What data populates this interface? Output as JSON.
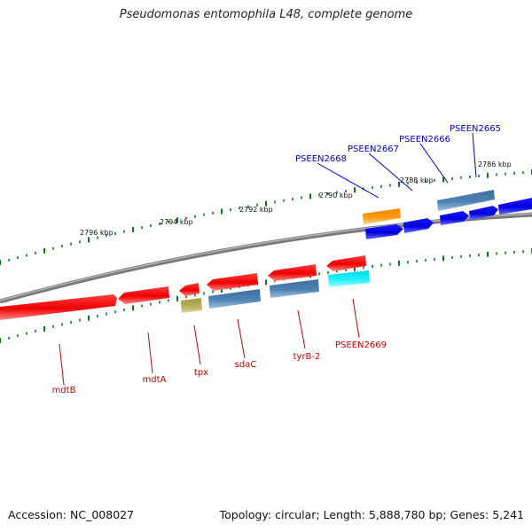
{
  "title": "Pseudomonas entomophila L48, complete genome",
  "footer": {
    "accession": "Accession: NC_008027",
    "topology": "Topology: circular; Length: 5,888,780 bp; Genes: 5,241"
  },
  "colors": {
    "background": "#ffffff",
    "backbone": "#888888",
    "tick": "#0b7a1b",
    "forward_label": "#0000cc",
    "reverse_label": "#cc0000",
    "red_gene": "#ff0000",
    "steelblue_gene": "#4a7fae",
    "blue_gene": "#0000ee",
    "orange_gene": "#ff9900",
    "olive_gene": "#b5a955",
    "cyan_gene": "#00e5ee"
  },
  "kbp_labels": [
    "2786 kbp",
    "2788 kbp",
    "2790 kbp",
    "2792 kbp",
    "2794 kbp",
    "2796 kbp"
  ],
  "forward_gene_labels": [
    "PSEEN2665",
    "PSEEN2666",
    "PSEEN2667",
    "PSEEN2668"
  ],
  "reverse_gene_labels": [
    "mdtB",
    "mdtA",
    "tpx",
    "sdaC",
    "tyrB-2",
    "PSEEN2669"
  ]
}
